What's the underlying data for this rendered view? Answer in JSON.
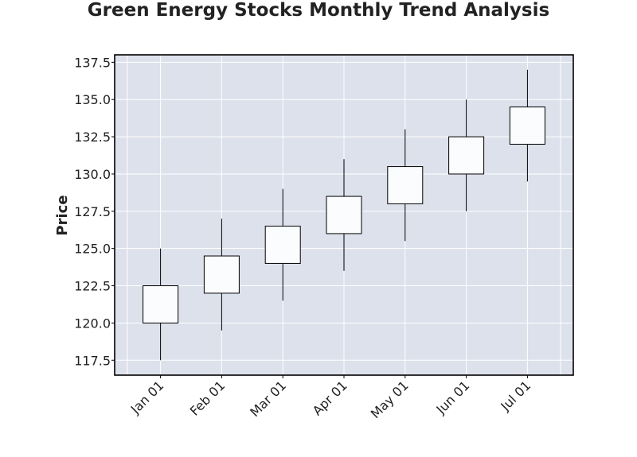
{
  "chart_data": {
    "type": "candlestick",
    "title": "Green Energy Stocks Monthly Trend Analysis",
    "xlabel": "",
    "ylabel": "Price",
    "ylim": [
      116.5,
      138.0
    ],
    "yticks": [
      "117.5",
      "120.0",
      "122.5",
      "125.0",
      "127.5",
      "130.0",
      "132.5",
      "135.0",
      "137.5"
    ],
    "grid": true,
    "colors": {
      "background": "#dde1ec",
      "grid": "#ffffff",
      "candle_up_fill": "#fbfcfd",
      "candle_edge": "#000000"
    },
    "categories": [
      "Jan 01",
      "Feb 01",
      "Mar 01",
      "Apr 01",
      "May 01",
      "Jun 01",
      "Jul 01"
    ],
    "candles": [
      {
        "date": "Jan 01",
        "open": 120.0,
        "high": 125.0,
        "low": 117.5,
        "close": 122.5
      },
      {
        "date": "Feb 01",
        "open": 122.0,
        "high": 127.0,
        "low": 119.5,
        "close": 124.5
      },
      {
        "date": "Mar 01",
        "open": 124.0,
        "high": 129.0,
        "low": 121.5,
        "close": 126.5
      },
      {
        "date": "Apr 01",
        "open": 126.0,
        "high": 131.0,
        "low": 123.5,
        "close": 128.5
      },
      {
        "date": "May 01",
        "open": 128.0,
        "high": 133.0,
        "low": 125.5,
        "close": 130.5
      },
      {
        "date": "Jun 01",
        "open": 130.0,
        "high": 135.0,
        "low": 127.5,
        "close": 132.5
      },
      {
        "date": "Jul 01",
        "open": 132.0,
        "high": 137.0,
        "low": 129.5,
        "close": 134.5
      }
    ]
  }
}
